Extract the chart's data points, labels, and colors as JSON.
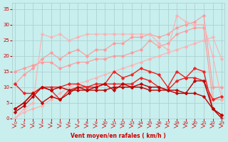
{
  "background_color": "#C8EEEE",
  "grid_color": "#AACCCC",
  "label_color": "#CC0000",
  "xlabel": "Vent moyen/en rafales ( km/h )",
  "ylim": [
    0,
    37
  ],
  "xlim": [
    -0.3,
    23.3
  ],
  "yticks": [
    0,
    5,
    10,
    15,
    20,
    25,
    30,
    35
  ],
  "xticks": [
    0,
    1,
    2,
    3,
    4,
    5,
    6,
    7,
    8,
    9,
    10,
    11,
    12,
    13,
    14,
    15,
    16,
    17,
    18,
    19,
    20,
    21,
    22,
    23
  ],
  "series": [
    {
      "color": "#FF9999",
      "lw": 0.8,
      "ms": 2.5,
      "y": [
        11,
        14,
        16,
        19,
        21,
        19,
        21,
        22,
        20,
        22,
        22,
        24,
        24,
        26,
        26,
        27,
        26,
        27,
        29,
        30,
        31,
        33,
        10,
        10
      ]
    },
    {
      "color": "#FF9999",
      "lw": 0.8,
      "ms": 2.5,
      "y": [
        15,
        16,
        17,
        18,
        18,
        16,
        17,
        18,
        18,
        19,
        19,
        20,
        20,
        21,
        22,
        25,
        23,
        24,
        27,
        28,
        29,
        29,
        6,
        6
      ]
    },
    {
      "color": "#FFB0B0",
      "lw": 0.8,
      "ms": 2.5,
      "y": [
        0,
        3,
        5,
        27,
        26,
        27,
        25,
        26,
        27,
        27,
        27,
        27,
        27,
        27,
        27,
        27,
        24,
        22,
        33,
        31,
        30,
        30,
        20,
        6
      ]
    },
    {
      "color": "#FFB0B0",
      "lw": 0.8,
      "ms": 2.5,
      "y": [
        0,
        2,
        3,
        4,
        6,
        8,
        10,
        11,
        12,
        13,
        14,
        15,
        16,
        17,
        18,
        19,
        20,
        21,
        22,
        23,
        24,
        25,
        26,
        19
      ]
    },
    {
      "color": "#EE2222",
      "lw": 1.0,
      "ms": 2.5,
      "y": [
        3,
        5,
        8,
        10,
        9,
        6,
        9,
        10,
        10,
        10,
        11,
        15,
        13,
        14,
        16,
        15,
        14,
        10,
        15,
        13,
        16,
        15,
        3,
        1
      ]
    },
    {
      "color": "#EE2222",
      "lw": 1.0,
      "ms": 2.5,
      "y": [
        11,
        8,
        8,
        10,
        10,
        10,
        11,
        11,
        10,
        11,
        11,
        11,
        11,
        11,
        13,
        12,
        10,
        9,
        12,
        13,
        13,
        12,
        6,
        7
      ]
    },
    {
      "color": "#BB0000",
      "lw": 1.0,
      "ms": 2.5,
      "y": [
        3,
        5,
        8,
        5,
        7,
        6,
        8,
        10,
        9,
        9,
        9,
        10,
        10,
        10,
        11,
        10,
        10,
        9,
        9,
        8,
        12,
        12,
        3,
        1
      ]
    },
    {
      "color": "#BB0000",
      "lw": 1.0,
      "ms": 2.5,
      "y": [
        2,
        4,
        7,
        10,
        9,
        10,
        9,
        9,
        9,
        10,
        11,
        9,
        11,
        10,
        10,
        9,
        9,
        9,
        8,
        8,
        8,
        7,
        3,
        0
      ]
    }
  ]
}
